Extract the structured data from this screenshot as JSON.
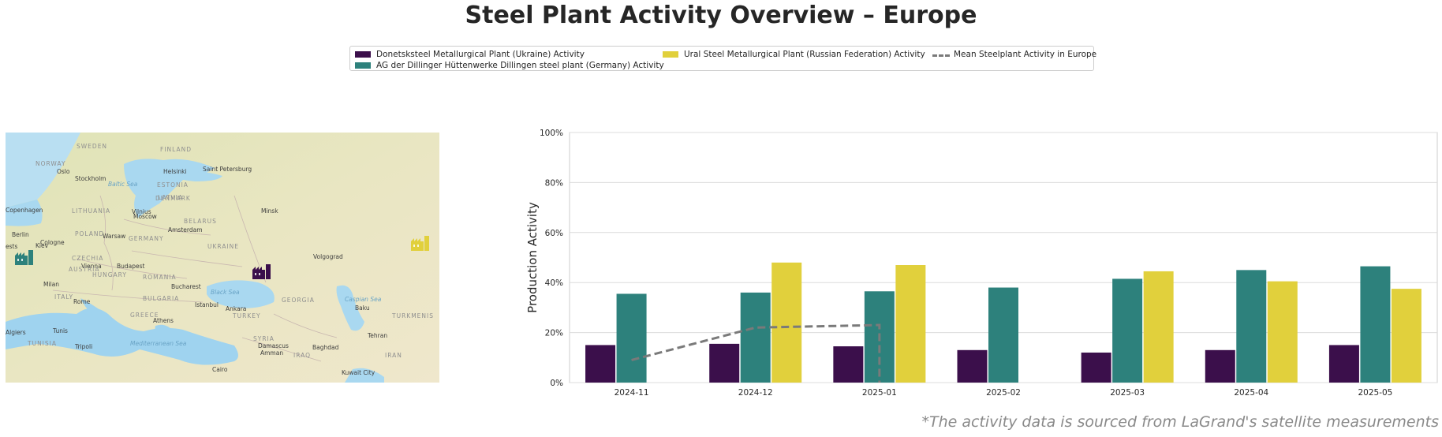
{
  "title": "Steel Plant Activity Overview – Europe",
  "footnote": "*The activity data is sourced from LaGrand's satellite measurements",
  "legend": {
    "items": [
      {
        "label": "Donetsksteel Metallurgical Plant (Ukraine) Activity",
        "color": "#3b0f4b",
        "kind": "bar"
      },
      {
        "label": "AG der Dillinger Hüttenwerke Dillingen steel plant (Germany) Activity",
        "color": "#2d817c",
        "kind": "bar"
      },
      {
        "label": "Ural Steel Metallurgical Plant (Russian Federation) Activity",
        "color": "#e1d03c",
        "kind": "bar"
      },
      {
        "label": "Mean Steelplant Activity in Europe",
        "color": "#7a7a7a",
        "kind": "line"
      }
    ]
  },
  "map": {
    "labels": [
      {
        "text": "SWEDEN",
        "cls": "country"
      },
      {
        "text": "FINLAND",
        "cls": "country"
      },
      {
        "text": "NORWAY",
        "cls": "country"
      },
      {
        "text": "Oslo",
        "cls": "city"
      },
      {
        "text": "Stockholm",
        "cls": "city"
      },
      {
        "text": "Helsinki",
        "cls": "city"
      },
      {
        "text": "Saint Petersburg",
        "cls": "city"
      },
      {
        "text": "ESTONIA",
        "cls": "country"
      },
      {
        "text": "Baltic Sea",
        "cls": "sea"
      },
      {
        "text": "LATVIA",
        "cls": "country"
      },
      {
        "text": "DENMARK",
        "cls": "country"
      },
      {
        "text": "Copenhagen",
        "cls": "city"
      },
      {
        "text": "LITHUANIA",
        "cls": "country"
      },
      {
        "text": "Vilnius",
        "cls": "city"
      },
      {
        "text": "Moscow",
        "cls": "city"
      },
      {
        "text": "Minsk",
        "cls": "city"
      },
      {
        "text": "BELARUS",
        "cls": "country"
      },
      {
        "text": "Amsterdam",
        "cls": "city"
      },
      {
        "text": "Berlin",
        "cls": "city"
      },
      {
        "text": "POLAND",
        "cls": "country"
      },
      {
        "text": "Warsaw",
        "cls": "city"
      },
      {
        "text": "GERMANY",
        "cls": "country"
      },
      {
        "text": "Cologne",
        "cls": "city"
      },
      {
        "text": "Kiev",
        "cls": "city"
      },
      {
        "text": "UKRAINE",
        "cls": "country"
      },
      {
        "text": "Volgograd",
        "cls": "city"
      },
      {
        "text": "CZECHIA",
        "cls": "country"
      },
      {
        "text": "Vienna",
        "cls": "city"
      },
      {
        "text": "AUSTRIA",
        "cls": "country"
      },
      {
        "text": "Budapest",
        "cls": "city"
      },
      {
        "text": "HUNGARY",
        "cls": "country"
      },
      {
        "text": "ROMANIA",
        "cls": "country"
      },
      {
        "text": "Milan",
        "cls": "city"
      },
      {
        "text": "Bucharest",
        "cls": "city"
      },
      {
        "text": "Black Sea",
        "cls": "sea"
      },
      {
        "text": "ITALY",
        "cls": "country"
      },
      {
        "text": "Rome",
        "cls": "city"
      },
      {
        "text": "BULGARIA",
        "cls": "country"
      },
      {
        "text": "GEORGIA",
        "cls": "country"
      },
      {
        "text": "Caspian Sea",
        "cls": "sea"
      },
      {
        "text": "Istanbul",
        "cls": "city"
      },
      {
        "text": "Ankara",
        "cls": "city"
      },
      {
        "text": "TURKEY",
        "cls": "country"
      },
      {
        "text": "Baku",
        "cls": "city"
      },
      {
        "text": "TURKMENIS",
        "cls": "country"
      },
      {
        "text": "GREECE",
        "cls": "country"
      },
      {
        "text": "Athens",
        "cls": "city"
      },
      {
        "text": "Tunis",
        "cls": "city"
      },
      {
        "text": "Algiers",
        "cls": "city"
      },
      {
        "text": "Tehran",
        "cls": "city"
      },
      {
        "text": "TUNISIA",
        "cls": "country"
      },
      {
        "text": "Tripoli",
        "cls": "city"
      },
      {
        "text": "Mediterranean Sea",
        "cls": "sea"
      },
      {
        "text": "SYRIA",
        "cls": "country"
      },
      {
        "text": "Damascus",
        "cls": "city"
      },
      {
        "text": "Baghdad",
        "cls": "city"
      },
      {
        "text": "IRAQ",
        "cls": "country"
      },
      {
        "text": "IRAN",
        "cls": "country"
      },
      {
        "text": "Amman",
        "cls": "city"
      },
      {
        "text": "Cairo",
        "cls": "city"
      },
      {
        "text": "Kuwait City",
        "cls": "city"
      },
      {
        "text": "ests",
        "cls": "city"
      }
    ],
    "markers": [
      {
        "name": "Donetsksteel",
        "color": "#3b0f4b"
      },
      {
        "name": "Dillingen",
        "color": "#2d817c"
      },
      {
        "name": "Ural Steel",
        "color": "#e1d03c"
      }
    ]
  },
  "chart_data": {
    "type": "bar",
    "categories": [
      "2024-11",
      "2024-12",
      "2025-01",
      "2025-02",
      "2025-03",
      "2025-04",
      "2025-05"
    ],
    "series": [
      {
        "name": "Donetsksteel Metallurgical Plant (Ukraine) Activity",
        "color": "#3b0f4b",
        "values": [
          15,
          15.5,
          14.5,
          13,
          12,
          13,
          15
        ]
      },
      {
        "name": "AG der Dillinger Hüttenwerke Dillingen steel plant (Germany) Activity",
        "color": "#2d817c",
        "values": [
          35.5,
          36,
          36.5,
          38,
          41.5,
          45,
          46.5
        ]
      },
      {
        "name": "Ural Steel Metallurgical Plant (Russian Federation) Activity",
        "color": "#e1d03c",
        "values": [
          null,
          48,
          47,
          null,
          44.5,
          40.5,
          37.5
        ]
      }
    ],
    "mean_line": {
      "name": "Mean Steelplant Activity in Europe",
      "color": "#7a7a7a",
      "points": [
        {
          "x": "2024-11",
          "y": 9
        },
        {
          "x": "2024-12",
          "y": 22
        },
        {
          "x": "2025-01",
          "y": 23
        },
        {
          "x": "2025-01",
          "y": 0
        }
      ]
    },
    "ylabel": "Production Activity",
    "xlabel": "",
    "ylim": [
      0,
      100
    ],
    "yticks": [
      "0%",
      "20%",
      "40%",
      "60%",
      "80%",
      "100%"
    ],
    "grid": true
  }
}
